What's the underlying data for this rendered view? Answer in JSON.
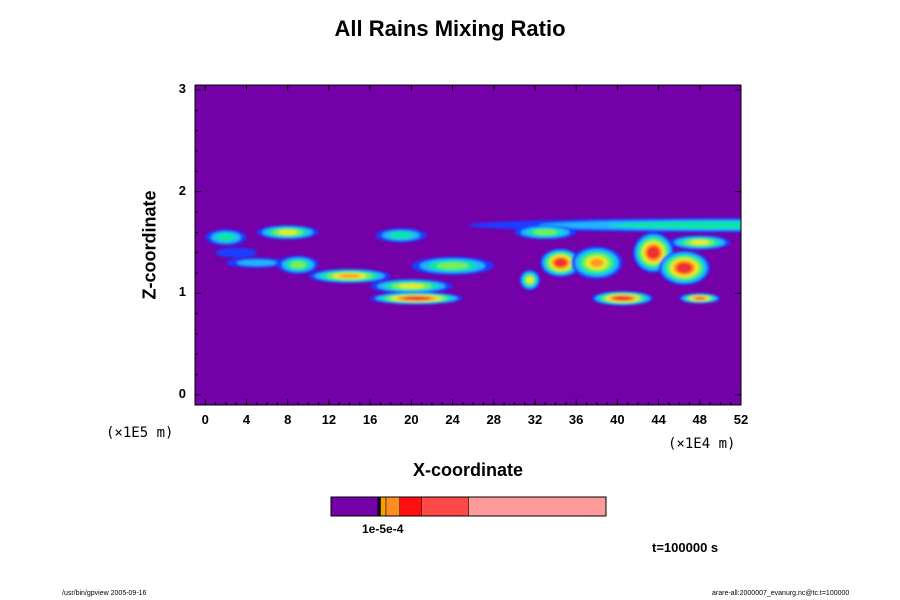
{
  "chart_data": {
    "type": "heatmap",
    "title": "All Rains Mixing Ratio",
    "xlabel": "X-coordinate",
    "ylabel": "Z-coordinate",
    "x_scale_label": "(×1E4 m)",
    "y_scale_label": "(×1E5 m)",
    "xlim": [
      -1,
      52
    ],
    "ylim": [
      -0.1,
      3.05
    ],
    "x_ticks": [
      "0",
      "4",
      "8",
      "12",
      "16",
      "20",
      "24",
      "28",
      "32",
      "36",
      "40",
      "44",
      "48",
      "52"
    ],
    "y_ticks": [
      "0",
      "1",
      "2",
      "3"
    ],
    "background_color": "#7400a8",
    "colormap": [
      "#7400a8",
      "#1a3cff",
      "#20b4ff",
      "#10e6a0",
      "#78f050",
      "#f0ec20",
      "#ff9a20",
      "#ff2a20",
      "#e8303c",
      "#ff9898"
    ],
    "features": [
      {
        "x": 51.5,
        "z": 1.67,
        "sx": 26.0,
        "sz": 0.07,
        "level": 3
      },
      {
        "x": 8.0,
        "z": 1.6,
        "sx": 3.0,
        "sz": 0.07,
        "level": 5
      },
      {
        "x": 2.0,
        "z": 1.55,
        "sx": 2.0,
        "sz": 0.08,
        "level": 3
      },
      {
        "x": 3.0,
        "z": 1.4,
        "sx": 2.0,
        "sz": 0.05,
        "level": 1
      },
      {
        "x": 5.0,
        "z": 1.3,
        "sx": 3.0,
        "sz": 0.05,
        "level": 2
      },
      {
        "x": 9.0,
        "z": 1.28,
        "sx": 2.0,
        "sz": 0.09,
        "level": 4
      },
      {
        "x": 14.0,
        "z": 1.17,
        "sx": 4.0,
        "sz": 0.07,
        "level": 6
      },
      {
        "x": 19.0,
        "z": 1.57,
        "sx": 2.5,
        "sz": 0.07,
        "level": 3
      },
      {
        "x": 24.0,
        "z": 1.27,
        "sx": 4.0,
        "sz": 0.09,
        "level": 4
      },
      {
        "x": 20.5,
        "z": 0.95,
        "sx": 4.5,
        "sz": 0.06,
        "level": 8
      },
      {
        "x": 20.0,
        "z": 1.07,
        "sx": 4.0,
        "sz": 0.07,
        "level": 5
      },
      {
        "x": 33.0,
        "z": 1.6,
        "sx": 3.0,
        "sz": 0.07,
        "level": 4
      },
      {
        "x": 34.5,
        "z": 1.3,
        "sx": 2.0,
        "sz": 0.14,
        "level": 8
      },
      {
        "x": 38.0,
        "z": 1.3,
        "sx": 2.5,
        "sz": 0.16,
        "level": 6
      },
      {
        "x": 40.5,
        "z": 0.95,
        "sx": 3.0,
        "sz": 0.07,
        "level": 8
      },
      {
        "x": 43.5,
        "z": 1.4,
        "sx": 2.0,
        "sz": 0.2,
        "level": 8
      },
      {
        "x": 46.5,
        "z": 1.25,
        "sx": 2.5,
        "sz": 0.17,
        "level": 8
      },
      {
        "x": 48.0,
        "z": 0.95,
        "sx": 2.0,
        "sz": 0.05,
        "level": 7
      },
      {
        "x": 31.5,
        "z": 1.13,
        "sx": 1.0,
        "sz": 0.1,
        "level": 5
      },
      {
        "x": 48.0,
        "z": 1.5,
        "sx": 3.0,
        "sz": 0.07,
        "level": 5
      }
    ]
  },
  "colorbar": {
    "colors": [
      "#7400a8",
      "#0a0a2a",
      "#f0a000",
      "#ff8c20",
      "#ff1010",
      "#ff4848",
      "#ff9a9a"
    ],
    "fractions": [
      0.17,
      0.01,
      0.02,
      0.05,
      0.08,
      0.17,
      0.5
    ],
    "tick_label": "1e-5e-4"
  },
  "annotations": {
    "time": "t=100000 s",
    "footer_left": "/usr/bin/gpview 2005-09-16",
    "footer_right": "arare-all:2000007_evanurg.nc@tc.t=100000"
  }
}
